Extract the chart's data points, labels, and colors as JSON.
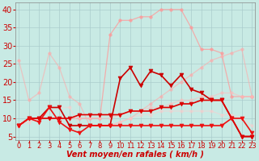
{
  "title": "",
  "xlabel": "Vent moyen/en rafales ( km/h )",
  "ylabel": "",
  "background_color": "#c8eae4",
  "grid_color": "#aacccc",
  "x": [
    0,
    1,
    2,
    3,
    4,
    5,
    6,
    7,
    8,
    9,
    10,
    11,
    12,
    13,
    14,
    15,
    16,
    17,
    18,
    19,
    20,
    21,
    22,
    23
  ],
  "series": [
    {
      "name": "light_pink_high",
      "color": "#ff9999",
      "alpha": 0.75,
      "marker": "o",
      "markersize": 2.5,
      "lw": 0.9,
      "y": [
        8,
        10,
        10,
        10,
        10,
        10,
        10,
        10,
        10,
        33,
        37,
        37,
        38,
        38,
        40,
        40,
        40,
        35,
        29,
        29,
        28,
        16,
        16,
        16
      ]
    },
    {
      "name": "light_pink_mid",
      "color": "#ffaaaa",
      "alpha": 0.6,
      "marker": "o",
      "markersize": 2.5,
      "lw": 0.9,
      "y": [
        26,
        15,
        17,
        28,
        24,
        16,
        14,
        8,
        8,
        8,
        9,
        10,
        12,
        14,
        16,
        18,
        20,
        22,
        24,
        26,
        27,
        28,
        29,
        16
      ]
    },
    {
      "name": "light_pink_flat",
      "color": "#ffbbbb",
      "alpha": 0.55,
      "marker": "o",
      "markersize": 2.5,
      "lw": 0.9,
      "y": [
        8,
        10,
        10,
        10,
        10,
        10,
        10,
        10,
        10,
        10,
        11,
        12,
        12,
        13,
        13,
        14,
        15,
        15,
        16,
        16,
        17,
        17,
        16,
        16
      ]
    },
    {
      "name": "light_pink_low",
      "color": "#ffcccc",
      "alpha": 0.5,
      "marker": "o",
      "markersize": 2.5,
      "lw": 0.9,
      "y": [
        8,
        9,
        10,
        13,
        13,
        13,
        8,
        8,
        8,
        8,
        9,
        10,
        11,
        11,
        12,
        12,
        12,
        12,
        12,
        12,
        11,
        11,
        10,
        8
      ]
    },
    {
      "name": "dark_red_wiggly",
      "color": "#cc0000",
      "alpha": 1.0,
      "marker": "v",
      "markersize": 3.5,
      "lw": 1.2,
      "y": [
        8,
        10,
        10,
        13,
        13,
        8,
        8,
        8,
        8,
        8,
        21,
        24,
        19,
        23,
        22,
        19,
        22,
        18,
        17,
        15,
        15,
        10,
        5,
        5
      ]
    },
    {
      "name": "dark_red_rising",
      "color": "#dd0000",
      "alpha": 1.0,
      "marker": "v",
      "markersize": 3.5,
      "lw": 1.2,
      "y": [
        8,
        10,
        10,
        10,
        10,
        10,
        11,
        11,
        11,
        11,
        11,
        12,
        12,
        12,
        13,
        13,
        14,
        14,
        15,
        15,
        15,
        10,
        5,
        5
      ]
    },
    {
      "name": "dark_red_bottom_wiggly",
      "color": "#ee1111",
      "alpha": 1.0,
      "marker": "v",
      "markersize": 3.5,
      "lw": 1.2,
      "y": [
        8,
        10,
        9,
        13,
        9,
        7,
        6,
        8,
        8,
        8,
        8,
        8,
        8,
        8,
        8,
        8,
        8,
        8,
        8,
        8,
        8,
        10,
        10,
        6
      ]
    }
  ],
  "yticks": [
    5,
    10,
    15,
    20,
    25,
    30,
    35,
    40
  ],
  "ylim": [
    4,
    42
  ],
  "xlim": [
    -0.3,
    23.3
  ],
  "xlabel_fontsize": 7,
  "ytick_fontsize": 7,
  "xtick_fontsize": 6
}
